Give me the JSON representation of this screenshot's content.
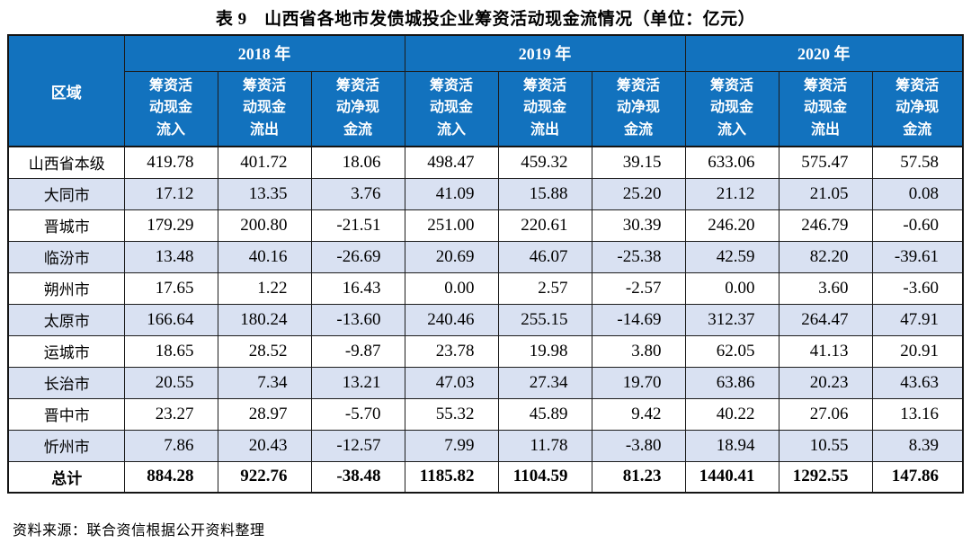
{
  "title": "表 9　山西省各地市发债城投企业筹资活动现金流情况（单位：亿元）",
  "table": {
    "region_header": "区域",
    "year_groups": [
      {
        "year": "2018 年",
        "sub_headers": [
          "筹资活\n动现金\n流入",
          "筹资活\n动现金\n流出",
          "筹资活\n动净现\n金流"
        ]
      },
      {
        "year": "2019 年",
        "sub_headers": [
          "筹资活\n动现金\n流入",
          "筹资活\n动现金\n流出",
          "筹资活\n动净现\n金流"
        ]
      },
      {
        "year": "2020 年",
        "sub_headers": [
          "筹资活\n动现金\n流入",
          "筹资活\n动现金\n流出",
          "筹资活\n动净现\n金流"
        ]
      }
    ],
    "rows": [
      {
        "region": "山西省本级",
        "values": [
          "419.78",
          "401.72",
          "18.06",
          "498.47",
          "459.32",
          "39.15",
          "633.06",
          "575.47",
          "57.58"
        ]
      },
      {
        "region": "大同市",
        "values": [
          "17.12",
          "13.35",
          "3.76",
          "41.09",
          "15.88",
          "25.20",
          "21.12",
          "21.05",
          "0.08"
        ]
      },
      {
        "region": "晋城市",
        "values": [
          "179.29",
          "200.80",
          "-21.51",
          "251.00",
          "220.61",
          "30.39",
          "246.20",
          "246.79",
          "-0.60"
        ]
      },
      {
        "region": "临汾市",
        "values": [
          "13.48",
          "40.16",
          "-26.69",
          "20.69",
          "46.07",
          "-25.38",
          "42.59",
          "82.20",
          "-39.61"
        ]
      },
      {
        "region": "朔州市",
        "values": [
          "17.65",
          "1.22",
          "16.43",
          "0.00",
          "2.57",
          "-2.57",
          "0.00",
          "3.60",
          "-3.60"
        ]
      },
      {
        "region": "太原市",
        "values": [
          "166.64",
          "180.24",
          "-13.60",
          "240.46",
          "255.15",
          "-14.69",
          "312.37",
          "264.47",
          "47.91"
        ]
      },
      {
        "region": "运城市",
        "values": [
          "18.65",
          "28.52",
          "-9.87",
          "23.78",
          "19.98",
          "3.80",
          "62.05",
          "41.13",
          "20.91"
        ]
      },
      {
        "region": "长治市",
        "values": [
          "20.55",
          "7.34",
          "13.21",
          "47.03",
          "27.34",
          "19.70",
          "63.86",
          "20.23",
          "43.63"
        ]
      },
      {
        "region": "晋中市",
        "values": [
          "23.27",
          "28.97",
          "-5.70",
          "55.32",
          "45.89",
          "9.42",
          "40.22",
          "27.06",
          "13.16"
        ]
      },
      {
        "region": "忻州市",
        "values": [
          "7.86",
          "20.43",
          "-12.57",
          "7.99",
          "11.78",
          "-3.80",
          "18.94",
          "10.55",
          "8.39"
        ]
      }
    ],
    "total_row": {
      "region": "总计",
      "values": [
        "884.28",
        "922.76",
        "-38.48",
        "1185.82",
        "1104.59",
        "81.23",
        "1440.41",
        "1292.55",
        "147.86"
      ]
    }
  },
  "footer": {
    "source": "资料来源：联合资信根据公开资料整理"
  },
  "colors": {
    "header_bg": "#1272BE",
    "alt_row_bg": "#D9E1F2",
    "border": "#1c1c1c"
  }
}
